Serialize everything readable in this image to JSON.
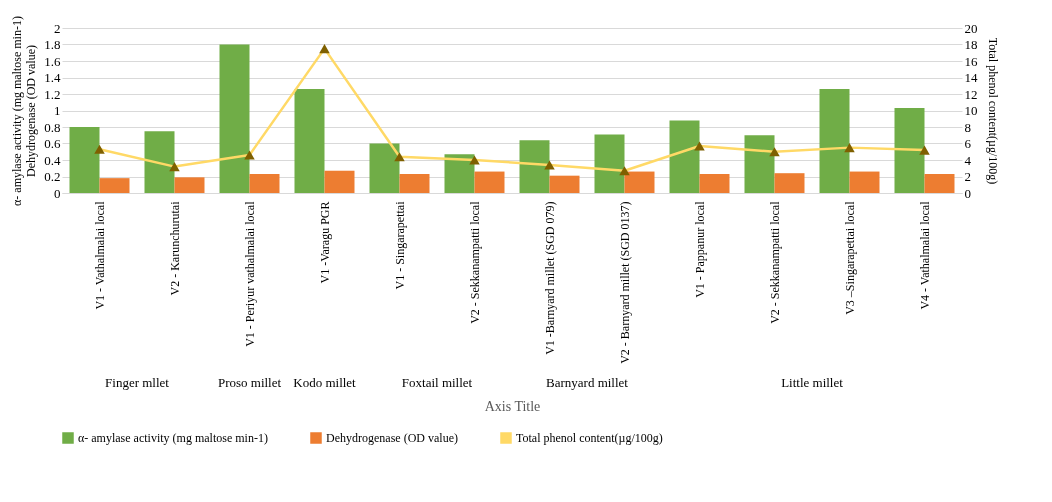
{
  "chart_data": {
    "type": "bar",
    "categories": [
      "V1 - Vathalmalai local",
      "V2 - Karunchurutai",
      "V1 - Periyur vathalmalai local",
      "V1 -Varagu PGR",
      "V1 - Singarapettai",
      "V2 - Sekkanampatti local",
      "V1 -Barnyard millet (SGD 079)",
      "V2 - Barnyard millet (SGD 0137)",
      "V1 - Pappanur local",
      "V2 - Sekkanampatti local",
      "V3 –Singarapettai local",
      "V4 - Vathalmalai local"
    ],
    "series": [
      {
        "name": "α- amylase activity (mg maltose min-1)",
        "color": "#70ad47",
        "values": [
          0.8,
          0.75,
          1.8,
          1.26,
          0.6,
          0.47,
          0.64,
          0.71,
          0.88,
          0.7,
          1.26,
          1.03
        ]
      },
      {
        "name": "Dehydrogenase (OD value)",
        "color": "#ed7d31",
        "values": [
          0.18,
          0.19,
          0.23,
          0.27,
          0.23,
          0.26,
          0.21,
          0.26,
          0.23,
          0.24,
          0.26,
          0.23
        ]
      },
      {
        "name": "Total phenol content(µg/100g)",
        "type": "line",
        "axis": "y2",
        "color": "#ffd966",
        "values": [
          5.3,
          3.2,
          4.6,
          17.5,
          4.4,
          4.0,
          3.4,
          2.7,
          5.7,
          5.0,
          5.5,
          5.2
        ]
      }
    ],
    "xlabel": "Axis Title",
    "ylabel": "α- amylase activity (mg maltose min-1)\nDehydrogenase (OD value)",
    "y2label": "Total phenol content(µg/100g)",
    "ylim": [
      0,
      2
    ],
    "yticks": [
      0,
      0.2,
      0.4,
      0.6,
      0.8,
      1,
      1.2,
      1.4,
      1.6,
      1.8,
      2
    ],
    "y2lim": [
      0,
      20
    ],
    "y2ticks": [
      0,
      2,
      4,
      6,
      8,
      10,
      12,
      14,
      16,
      18,
      20
    ],
    "annotations": [
      "Finger mllet",
      "Proso millet",
      "Kodo millet",
      "Foxtail millet",
      "Barnyard millet",
      "Little millet"
    ],
    "grid": "y",
    "legend": "bottom",
    "marker": "triangle"
  }
}
